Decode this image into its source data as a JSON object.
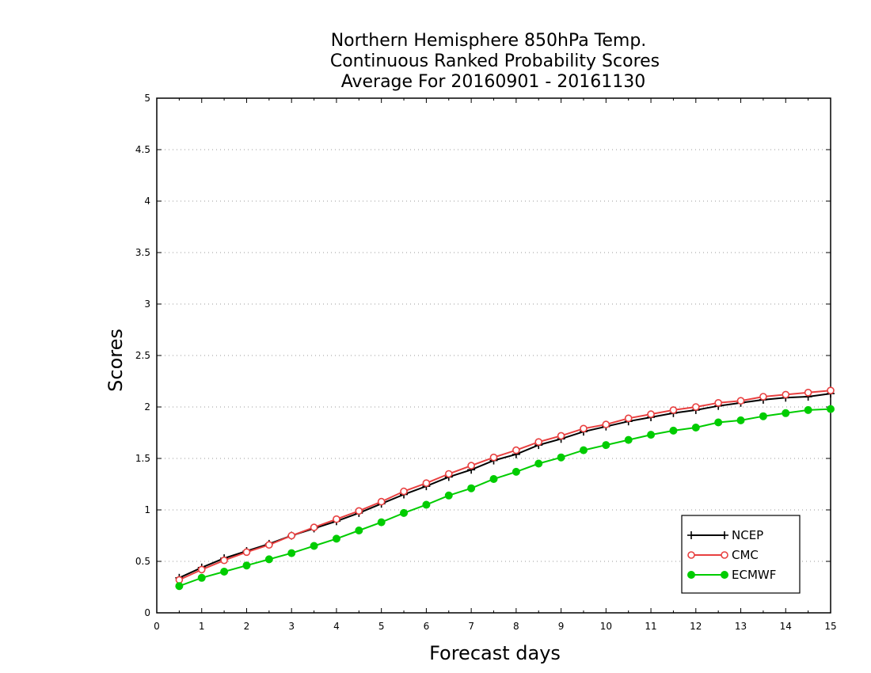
{
  "chart_data": {
    "type": "line",
    "title": [
      "Northern Hemisphere 850hPa Temp.",
      "Continuous Ranked Probability Scores",
      "Average For 20160901 - 20161130"
    ],
    "xlabel": "Forecast days",
    "ylabel": "Scores",
    "xlim": [
      0,
      15
    ],
    "ylim": [
      0,
      5
    ],
    "xticks": [
      "0",
      "1",
      "2",
      "3",
      "4",
      "5",
      "6",
      "7",
      "8",
      "9",
      "10",
      "11",
      "12",
      "13",
      "14",
      "15"
    ],
    "yticks": [
      "0",
      "0.5",
      "1",
      "1.5",
      "2",
      "2.5",
      "3",
      "3.5",
      "4",
      "4.5",
      "5"
    ],
    "grid": "horizontal dotted",
    "legend_position": "bottom-right",
    "x": [
      0.5,
      1,
      1.5,
      2,
      2.5,
      3,
      3.5,
      4,
      4.5,
      5,
      5.5,
      6,
      6.5,
      7,
      7.5,
      8,
      8.5,
      9,
      9.5,
      10,
      10.5,
      11,
      11.5,
      12,
      12.5,
      13,
      13.5,
      14,
      14.5,
      15
    ],
    "series": [
      {
        "name": "NCEP",
        "color": "#000000",
        "marker": "plus",
        "values": [
          0.34,
          0.44,
          0.53,
          0.6,
          0.67,
          0.75,
          0.82,
          0.89,
          0.97,
          1.06,
          1.15,
          1.23,
          1.32,
          1.39,
          1.48,
          1.54,
          1.63,
          1.69,
          1.76,
          1.81,
          1.86,
          1.9,
          1.94,
          1.97,
          2.01,
          2.04,
          2.07,
          2.09,
          2.1,
          2.13
        ]
      },
      {
        "name": "CMC",
        "color": "#e84040",
        "marker": "open-circle",
        "values": [
          0.32,
          0.42,
          0.51,
          0.59,
          0.66,
          0.75,
          0.83,
          0.91,
          0.99,
          1.08,
          1.18,
          1.26,
          1.35,
          1.43,
          1.51,
          1.58,
          1.66,
          1.72,
          1.79,
          1.83,
          1.89,
          1.93,
          1.97,
          2.0,
          2.04,
          2.06,
          2.1,
          2.12,
          2.14,
          2.16
        ]
      },
      {
        "name": "ECMWF",
        "color": "#00cc00",
        "marker": "filled-circle",
        "values": [
          0.26,
          0.34,
          0.4,
          0.46,
          0.52,
          0.58,
          0.65,
          0.72,
          0.8,
          0.88,
          0.97,
          1.05,
          1.14,
          1.21,
          1.3,
          1.37,
          1.45,
          1.51,
          1.58,
          1.63,
          1.68,
          1.73,
          1.77,
          1.8,
          1.85,
          1.87,
          1.91,
          1.94,
          1.97,
          1.98
        ]
      }
    ]
  }
}
